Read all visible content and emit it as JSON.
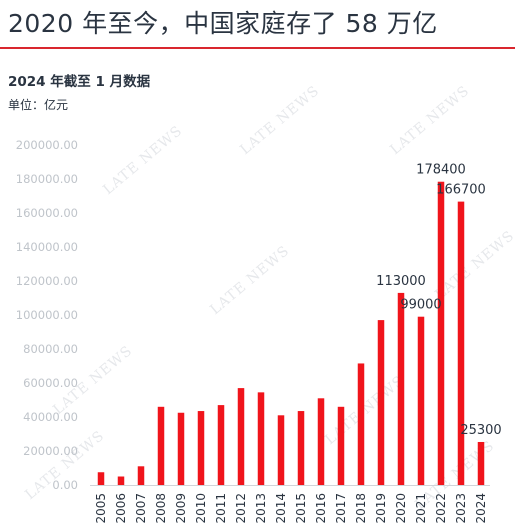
{
  "header": {
    "title": "2020 年至今，中国家庭存了 58 万亿",
    "subtitle": "2024 年截至 1 月数据",
    "unit": "单位：亿元"
  },
  "watermark": "LATE NEWS",
  "colors": {
    "bar": "#f0141b",
    "rule": "#d9262e",
    "text": "#2a3441",
    "tick": "#bfc4ca"
  },
  "chart_data": {
    "type": "bar",
    "title": "2020 年至今，中国家庭存了 58 万亿",
    "subtitle": "2024 年截至 1 月数据",
    "ylabel": "单位：亿元",
    "categories": [
      "2005",
      "2006",
      "2007",
      "2008",
      "2009",
      "2010",
      "2011",
      "2012",
      "2013",
      "2014",
      "2015",
      "2016",
      "2017",
      "2018",
      "2019",
      "2020",
      "2021",
      "2022",
      "2023",
      "2024"
    ],
    "values": [
      7500,
      5000,
      11000,
      46000,
      42500,
      43500,
      47000,
      57000,
      54500,
      41000,
      43500,
      51000,
      46000,
      71500,
      97000,
      113000,
      99000,
      178400,
      166700,
      25300
    ],
    "data_labels": [
      null,
      null,
      null,
      null,
      null,
      null,
      null,
      null,
      null,
      null,
      null,
      null,
      null,
      null,
      null,
      "113000",
      "99000",
      "178400",
      "166700",
      "25300"
    ],
    "ylim": [
      0,
      200000
    ],
    "yticks": [
      "0.00",
      "20000.00",
      "40000.00",
      "60000.00",
      "80000.00",
      "100000.00",
      "120000.00",
      "140000.00",
      "160000.00",
      "180000.00",
      "200000.00"
    ],
    "grid": false,
    "legend": "none"
  }
}
